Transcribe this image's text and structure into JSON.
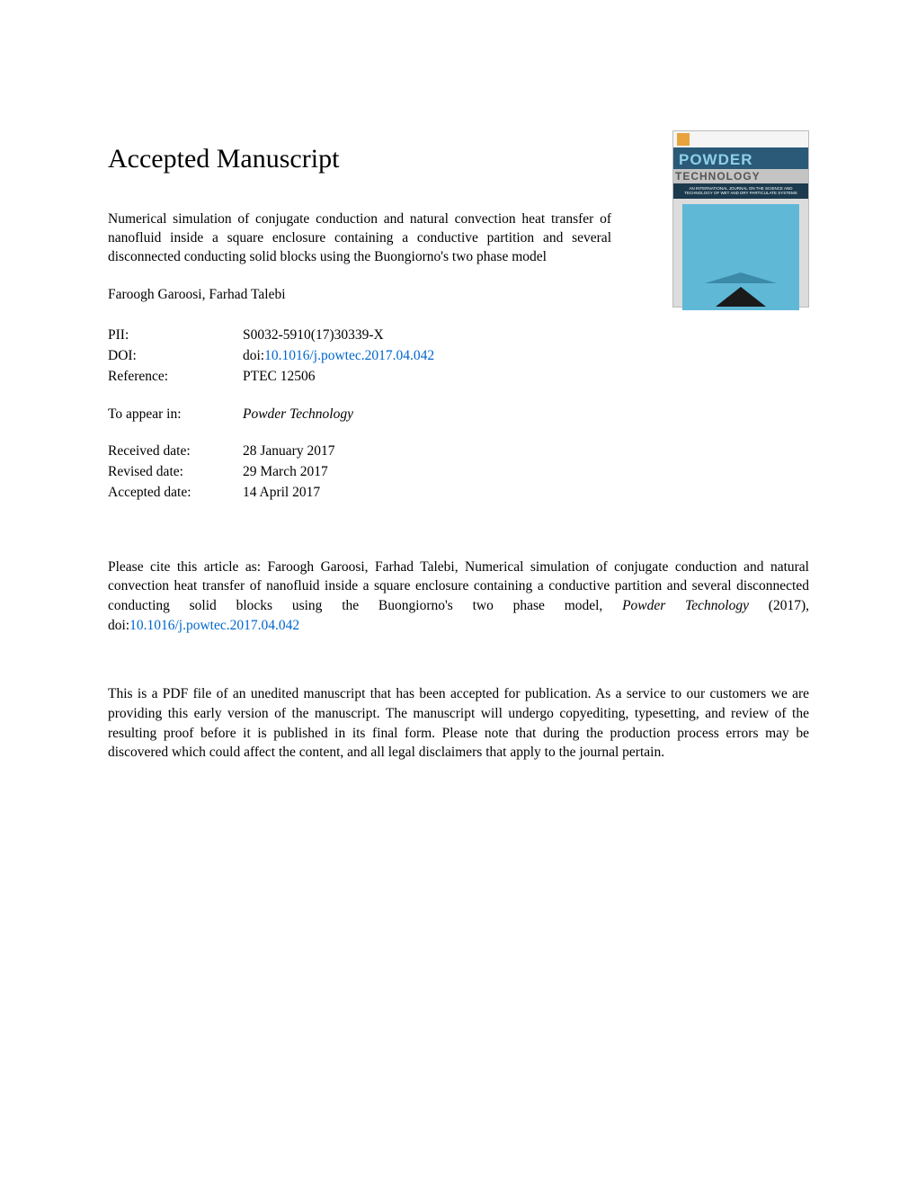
{
  "heading": "Accepted Manuscript",
  "article_title": "Numerical simulation of conjugate conduction and natural convection heat transfer of nanofluid inside a square enclosure containing a conductive partition and several disconnected conducting solid blocks using the Buongiorno's two phase model",
  "authors": "Faroogh Garoosi, Farhad Talebi",
  "meta": {
    "pii_label": "PII:",
    "pii_value": "S0032-5910(17)30339-X",
    "doi_label": "DOI:",
    "doi_prefix": "doi:",
    "doi_link": "10.1016/j.powtec.2017.04.042",
    "ref_label": "Reference:",
    "ref_value": "PTEC 12506",
    "appear_label": "To appear in:",
    "appear_value": "Powder Technology",
    "received_label": "Received date:",
    "received_value": "28 January 2017",
    "revised_label": "Revised date:",
    "revised_value": "29 March 2017",
    "accepted_label": "Accepted date:",
    "accepted_value": "14 April 2017"
  },
  "citation": {
    "prefix": "Please cite this article as: Faroogh Garoosi, Farhad Talebi, Numerical simulation of conjugate conduction and natural convection heat transfer of nanofluid inside a square enclosure containing a conductive partition and several disconnected conducting solid blocks using the Buongiorno's two phase model, ",
    "journal": "Powder Technology",
    "year": " (2017), doi:",
    "doi_link": "10.1016/j.powtec.2017.04.042"
  },
  "disclaimer": "This is a PDF file of an unedited manuscript that has been accepted for publication. As a service to our customers we are providing this early version of the manuscript. The manuscript will undergo copyediting, typesetting, and review of the resulting proof before it is published in its final form. Please note that during the production process errors may be discovered which could affect the content, and all legal disclaimers that apply to the journal pertain.",
  "cover": {
    "title1": "POWDER",
    "title2": "TECHNOLOGY",
    "subtitle": "AN INTERNATIONAL JOURNAL ON THE SCIENCE AND TECHNOLOGY OF WET AND DRY PARTICULATE SYSTEMS",
    "bg_color": "#5fb8d6",
    "band_color": "#2a5a78",
    "sub_band_color": "#1b3a4d",
    "triangle_color": "#1a1a1a"
  },
  "colors": {
    "text": "#000000",
    "link": "#0066cc",
    "background": "#ffffff"
  },
  "typography": {
    "heading_size_pt": 22,
    "body_size_pt": 11.5,
    "font_family": "Georgia, serif"
  }
}
